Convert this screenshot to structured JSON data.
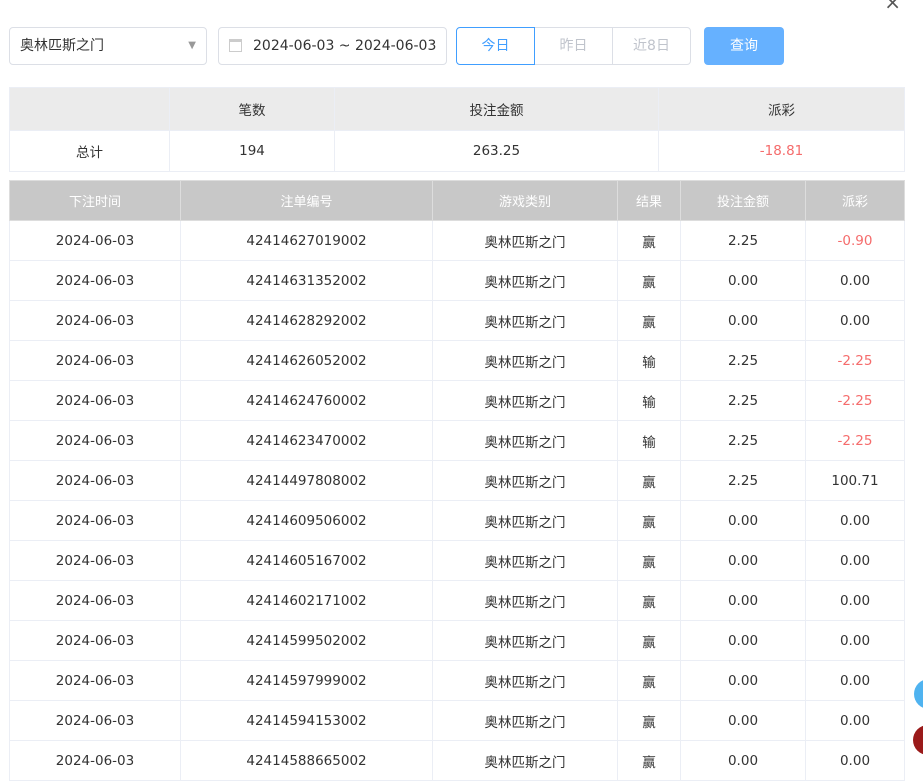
{
  "filters": {
    "game": "奥林匹斯之门",
    "date_range": "2024-06-03 ~ 2024-06-03",
    "quick": [
      "今日",
      "昨日",
      "近8日"
    ],
    "active_quick": 0,
    "query": "查询"
  },
  "summary": {
    "headers": [
      "",
      "笔数",
      "投注金额",
      "派彩"
    ],
    "label": "总计",
    "count": "194",
    "amount": "263.25",
    "payout": "-18.81"
  },
  "table": {
    "headers": [
      "下注时间",
      "注单编号",
      "游戏类别",
      "结果",
      "投注金额",
      "派彩"
    ],
    "rows": [
      [
        "2024-06-03",
        "42414627019002",
        "奥林匹斯之门",
        "赢",
        "2.25",
        "-0.90"
      ],
      [
        "2024-06-03",
        "42414631352002",
        "奥林匹斯之门",
        "赢",
        "0.00",
        "0.00"
      ],
      [
        "2024-06-03",
        "42414628292002",
        "奥林匹斯之门",
        "赢",
        "0.00",
        "0.00"
      ],
      [
        "2024-06-03",
        "42414626052002",
        "奥林匹斯之门",
        "输",
        "2.25",
        "-2.25"
      ],
      [
        "2024-06-03",
        "42414624760002",
        "奥林匹斯之门",
        "输",
        "2.25",
        "-2.25"
      ],
      [
        "2024-06-03",
        "42414623470002",
        "奥林匹斯之门",
        "输",
        "2.25",
        "-2.25"
      ],
      [
        "2024-06-03",
        "42414497808002",
        "奥林匹斯之门",
        "赢",
        "2.25",
        "100.71"
      ],
      [
        "2024-06-03",
        "42414609506002",
        "奥林匹斯之门",
        "赢",
        "0.00",
        "0.00"
      ],
      [
        "2024-06-03",
        "42414605167002",
        "奥林匹斯之门",
        "赢",
        "0.00",
        "0.00"
      ],
      [
        "2024-06-03",
        "42414602171002",
        "奥林匹斯之门",
        "赢",
        "0.00",
        "0.00"
      ],
      [
        "2024-06-03",
        "42414599502002",
        "奥林匹斯之门",
        "赢",
        "0.00",
        "0.00"
      ],
      [
        "2024-06-03",
        "42414597999002",
        "奥林匹斯之门",
        "赢",
        "0.00",
        "0.00"
      ],
      [
        "2024-06-03",
        "42414594153002",
        "奥林匹斯之门",
        "赢",
        "0.00",
        "0.00"
      ],
      [
        "2024-06-03",
        "42414588665002",
        "奥林匹斯之门",
        "赢",
        "0.00",
        "0.00"
      ]
    ]
  },
  "colors": {
    "accent": "#409eff",
    "negative": "#f56c6c"
  }
}
